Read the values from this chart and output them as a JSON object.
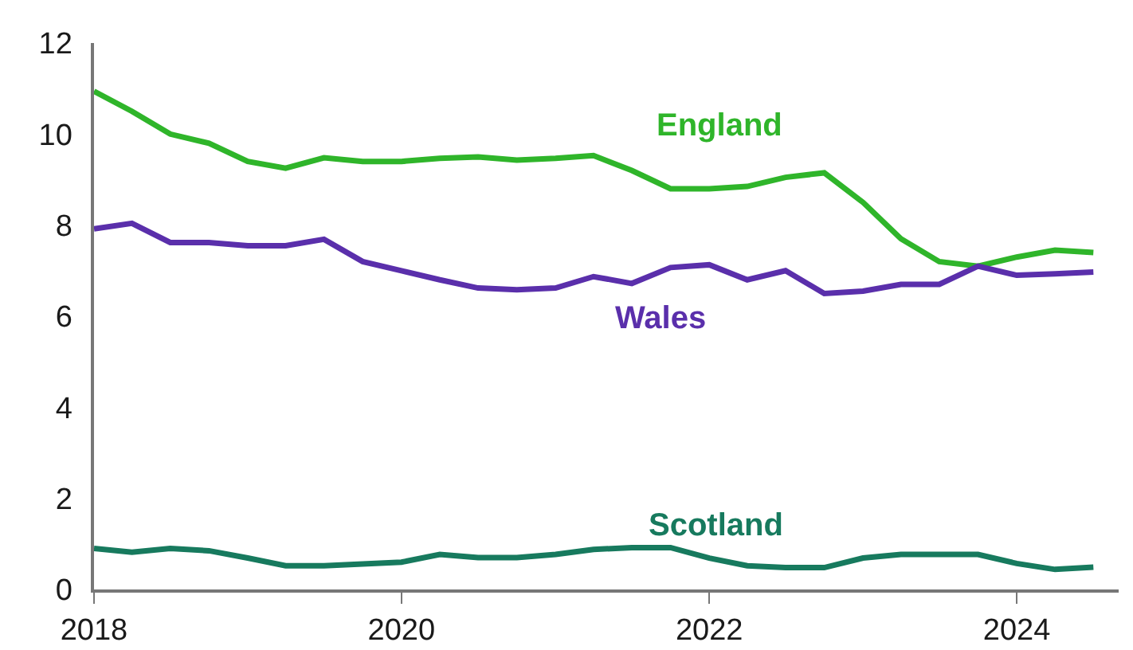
{
  "chart_data": {
    "type": "line",
    "x": [
      "2018-01",
      "2018-04",
      "2018-07",
      "2018-10",
      "2019-01",
      "2019-04",
      "2019-07",
      "2019-10",
      "2020-01",
      "2020-04",
      "2020-07",
      "2020-10",
      "2021-01",
      "2021-04",
      "2021-07",
      "2021-10",
      "2022-01",
      "2022-04",
      "2022-07",
      "2022-10",
      "2023-01",
      "2023-04",
      "2023-07",
      "2023-10",
      "2024-01",
      "2024-04",
      "2024-07"
    ],
    "series": [
      {
        "name": "England",
        "color": "#2fb52a",
        "values": [
          10.94,
          10.5,
          10.0,
          9.8,
          9.4,
          9.25,
          9.48,
          9.4,
          9.4,
          9.47,
          9.5,
          9.43,
          9.47,
          9.53,
          9.2,
          8.8,
          8.8,
          8.85,
          9.05,
          9.15,
          8.5,
          7.7,
          7.2,
          7.1,
          7.3,
          7.45,
          7.4
        ]
      },
      {
        "name": "Wales",
        "color": "#5a2fab",
        "values": [
          7.92,
          8.04,
          7.62,
          7.62,
          7.55,
          7.55,
          7.69,
          7.2,
          7.0,
          6.8,
          6.62,
          6.58,
          6.62,
          6.87,
          6.72,
          7.07,
          7.13,
          6.8,
          7.0,
          6.5,
          6.55,
          6.7,
          6.7,
          7.1,
          6.9,
          6.93,
          6.97
        ]
      },
      {
        "name": "Scotland",
        "color": "#177a5e",
        "values": [
          0.9,
          0.82,
          0.9,
          0.85,
          0.69,
          0.52,
          0.52,
          0.56,
          0.6,
          0.77,
          0.7,
          0.7,
          0.77,
          0.88,
          0.92,
          0.92,
          0.69,
          0.52,
          0.48,
          0.48,
          0.69,
          0.77,
          0.77,
          0.77,
          0.57,
          0.44,
          0.49
        ]
      }
    ],
    "xlim": [
      "2018-01-01",
      "2024-08-30"
    ],
    "xticks": [
      {
        "value": "2018-01-01",
        "label": "2018"
      },
      {
        "value": "2020-01-01",
        "label": "2020"
      },
      {
        "value": "2022-01-01",
        "label": "2022"
      },
      {
        "value": "2024-01-01",
        "label": "2024"
      }
    ],
    "ylim": [
      0,
      12
    ],
    "yticks": [
      0,
      2,
      4,
      6,
      8,
      10,
      12
    ],
    "legend": false,
    "marker": "none",
    "line_style": "solid"
  }
}
